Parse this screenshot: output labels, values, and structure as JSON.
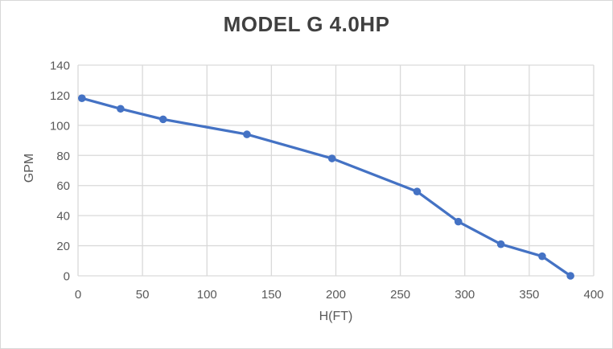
{
  "window": {
    "background": "#ffffff",
    "border_color": "#d8d8d8"
  },
  "chart_data": {
    "type": "line",
    "title": "MODEL G 4.0HP",
    "xlabel": "H(FT)",
    "ylabel": "GPM",
    "xlim": [
      0,
      400
    ],
    "ylim": [
      0,
      140
    ],
    "x_ticks": [
      0,
      50,
      100,
      150,
      200,
      250,
      300,
      350,
      400
    ],
    "y_ticks": [
      0,
      20,
      40,
      60,
      80,
      100,
      120,
      140
    ],
    "grid": true,
    "legend": false,
    "series": [
      {
        "name": "GPM vs H(FT)",
        "color": "#4472c4",
        "marker": "circle",
        "x": [
          3,
          33,
          66,
          131,
          197,
          263,
          295,
          328,
          360,
          382
        ],
        "y": [
          118,
          111,
          104,
          94,
          78,
          56,
          36,
          21,
          13,
          0
        ]
      }
    ],
    "colors": {
      "gridline": "#d9d9d9",
      "tick_label": "#595959",
      "axis_title": "#595959",
      "title": "#404040"
    }
  }
}
